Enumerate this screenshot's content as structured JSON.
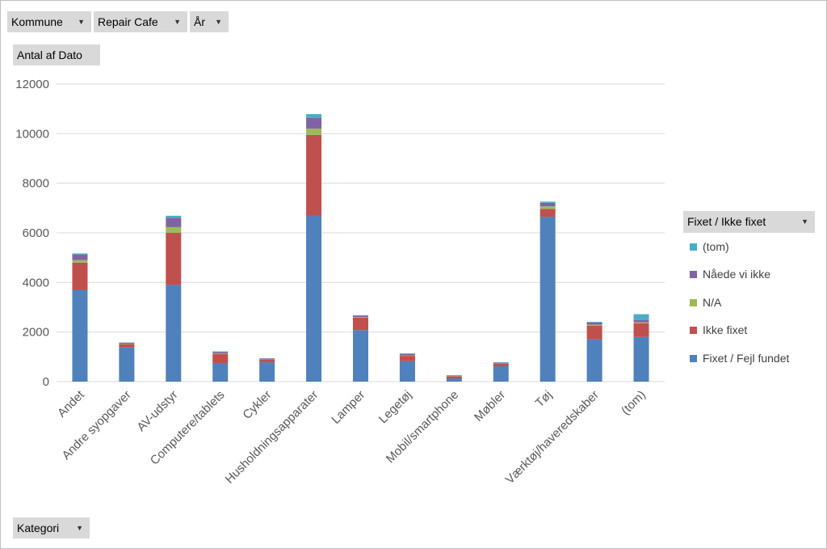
{
  "filters": {
    "kommune_label": "Kommune",
    "repair_cafe_label": "Repair Cafe",
    "aar_label": "År",
    "values_label": "Antal af Dato",
    "kategori_label": "Kategori",
    "legend_title": "Fixet / Ikke fixet",
    "dropdown_icon": "dropdown-arrow-icon"
  },
  "legend": [
    {
      "name": "(tom)",
      "color": "#4bacc6"
    },
    {
      "name": "Nåede vi ikke",
      "color": "#8064a2"
    },
    {
      "name": "N/A",
      "color": "#9bbb59"
    },
    {
      "name": "Ikke fixet",
      "color": "#c0504d"
    },
    {
      "name": "Fixet / Fejl fundet",
      "color": "#4f81bd"
    }
  ],
  "chart_data": {
    "type": "bar",
    "stacked": true,
    "title": "",
    "xlabel": "",
    "ylabel": "",
    "ylim": [
      0,
      12000
    ],
    "yticks": [
      0,
      2000,
      4000,
      6000,
      8000,
      10000,
      12000
    ],
    "grid": true,
    "legend_position": "right",
    "categories": [
      "Andet",
      "Andre syopgaver",
      "AV-udstyr",
      "Computere/tablets",
      "Cykler",
      "Husholdningsapparater",
      "Lamper",
      "Legetøj",
      "Mobil/smartphone",
      "Møbler",
      "Tøj",
      "Værktøj/haveredskaber",
      "(tom)"
    ],
    "series": [
      {
        "name": "Fixet / Fejl fundet",
        "color": "#4f81bd",
        "values": [
          3700,
          1380,
          3900,
          720,
          780,
          6700,
          2080,
          820,
          130,
          620,
          6650,
          1700,
          1800
        ]
      },
      {
        "name": "Ikke fixet",
        "color": "#c0504d",
        "values": [
          1100,
          120,
          2100,
          400,
          120,
          3250,
          500,
          220,
          90,
          120,
          320,
          560,
          550
        ]
      },
      {
        "name": "N/A",
        "color": "#9bbb59",
        "values": [
          100,
          20,
          230,
          20,
          10,
          250,
          20,
          20,
          10,
          10,
          100,
          40,
          40
        ]
      },
      {
        "name": "Nåede vi ikke",
        "color": "#8064a2",
        "values": [
          220,
          50,
          380,
          60,
          20,
          430,
          60,
          60,
          20,
          20,
          140,
          80,
          100
        ]
      },
      {
        "name": "(tom)",
        "color": "#4bacc6",
        "values": [
          50,
          10,
          80,
          20,
          10,
          160,
          20,
          20,
          10,
          10,
          50,
          30,
          230
        ]
      }
    ]
  }
}
